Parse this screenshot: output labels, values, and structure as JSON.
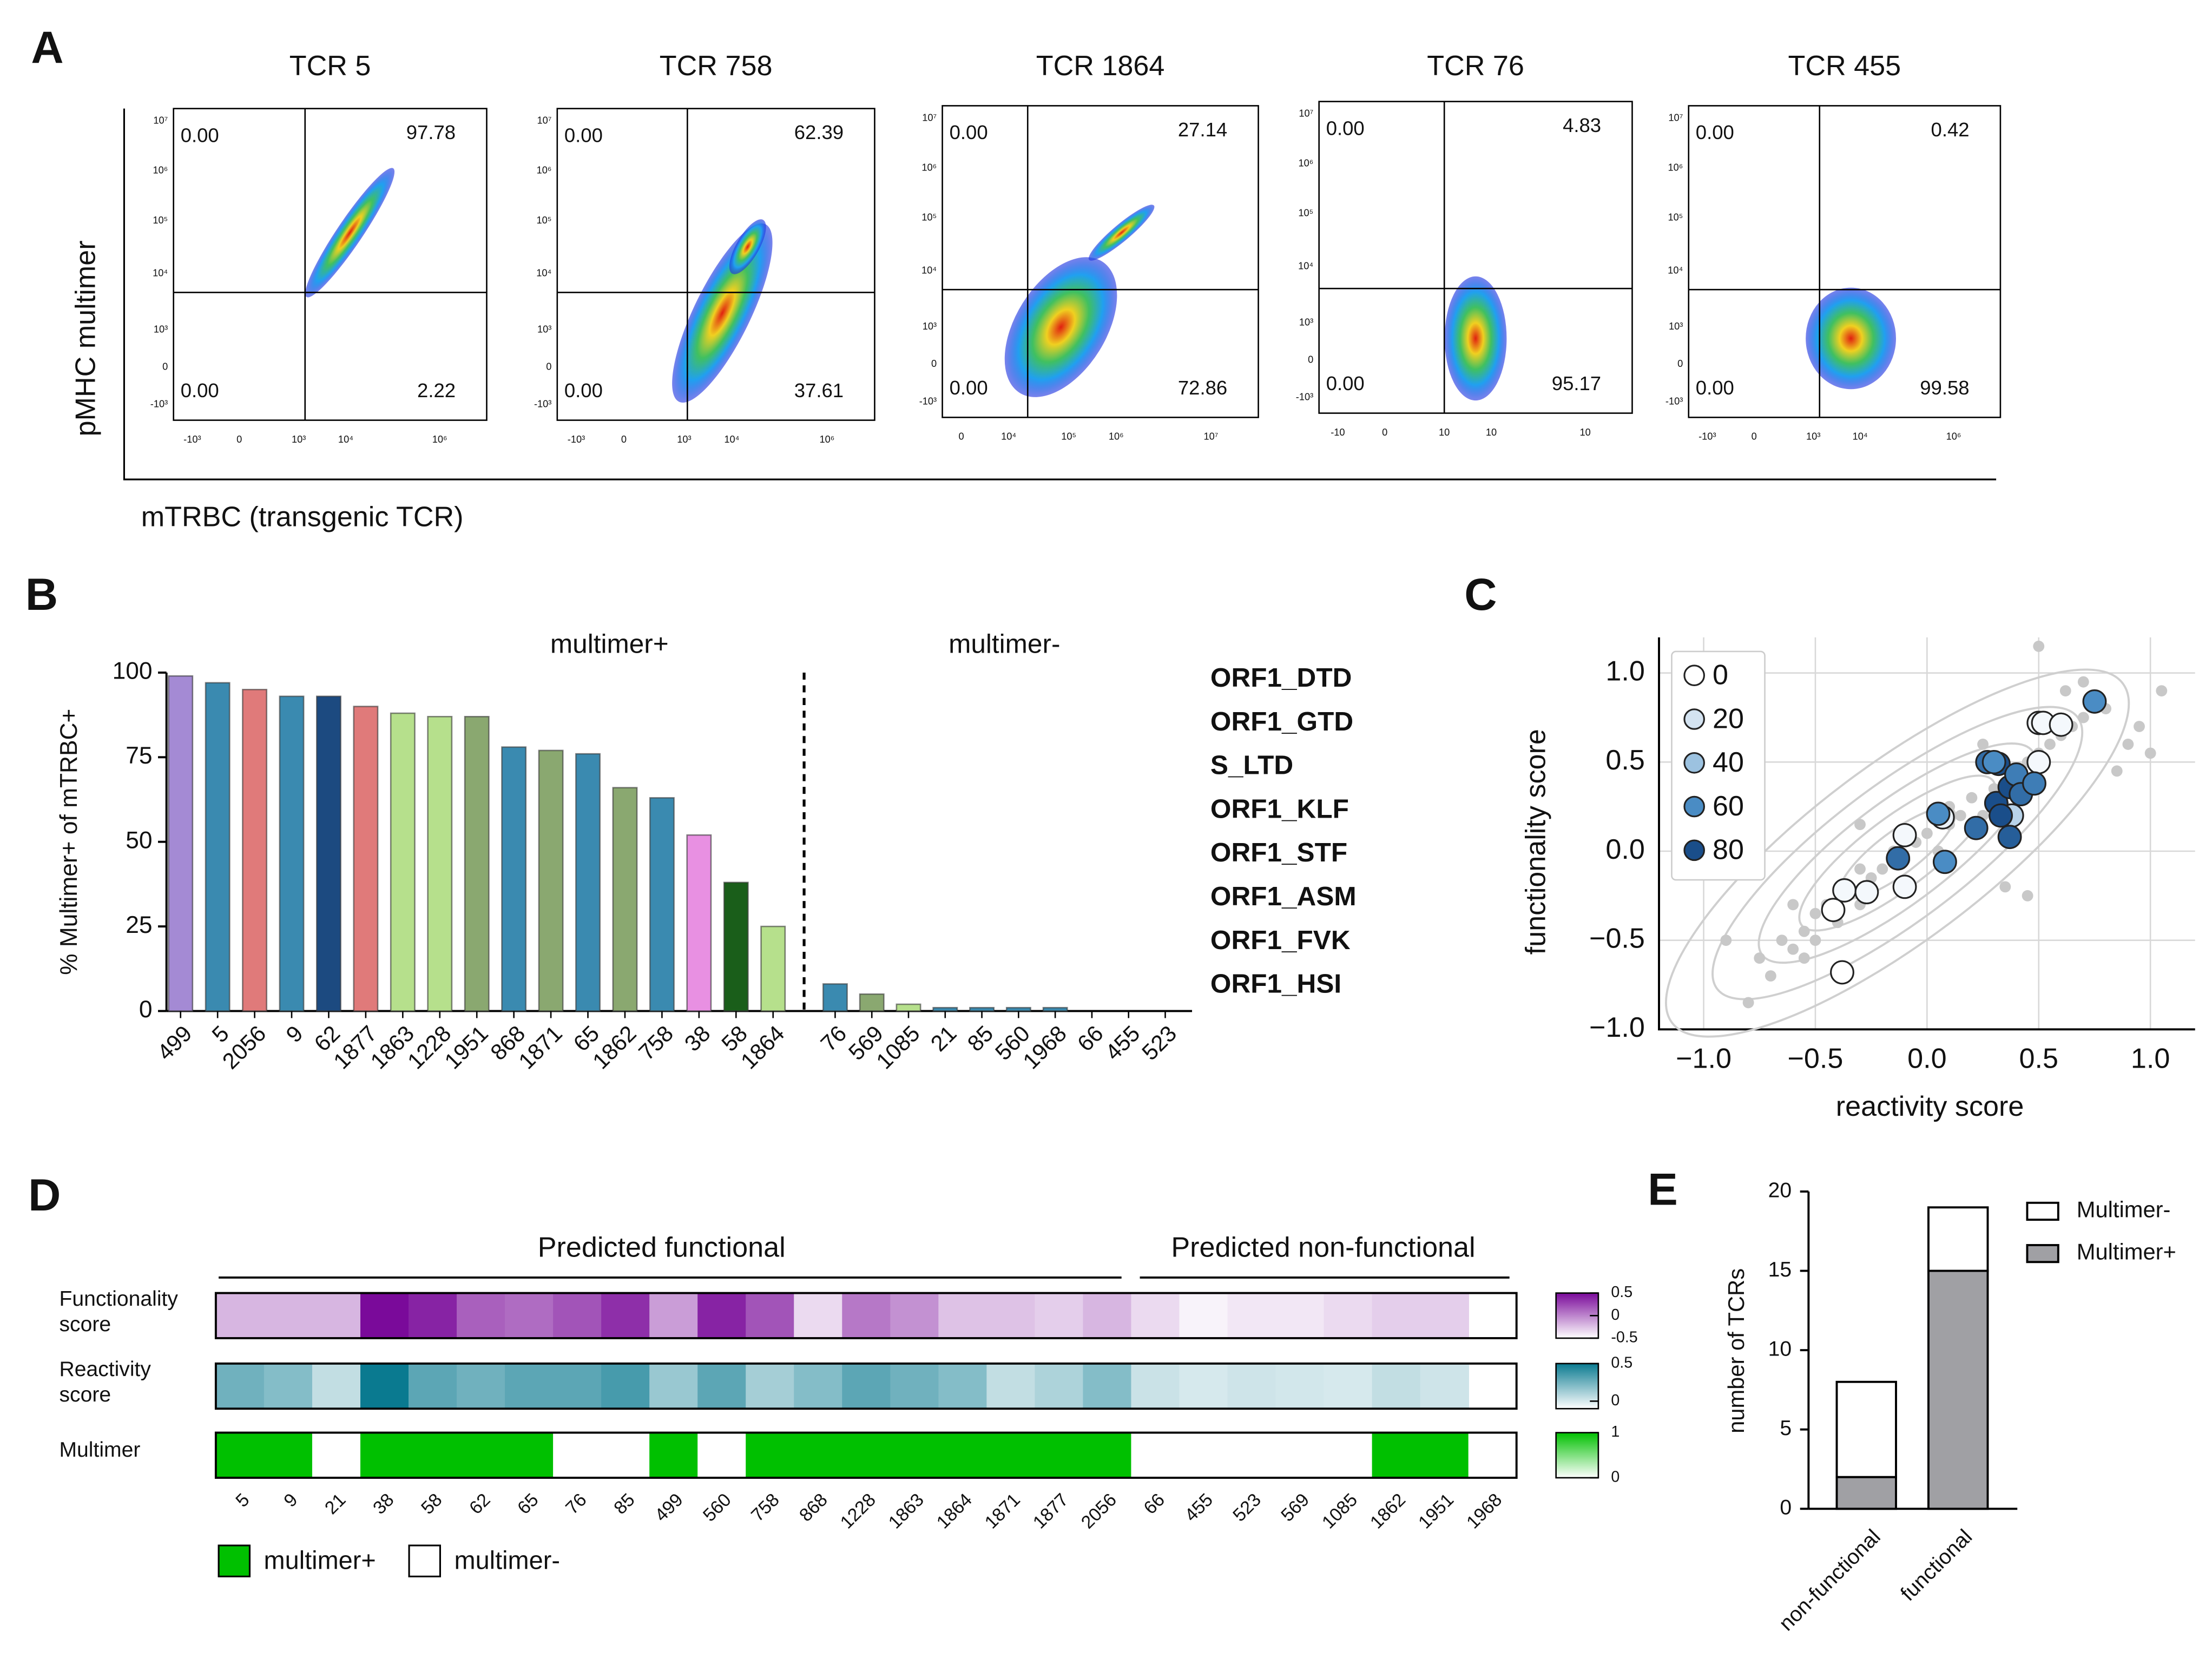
{
  "chart_data": [
    {
      "type": "flow",
      "panel": "A",
      "ylabel": "pMHC multimer",
      "xlabel": "mTRBC (transgenic TCR)",
      "plots": [
        {
          "title": "TCR 5",
          "values": [
            0,
            97.78,
            0,
            2.22
          ],
          "value_labels": [
            "0.00",
            "97.78",
            "0.00",
            "2.22"
          ],
          "ytick_labels": [
            "10⁷",
            "10⁶",
            "10⁵",
            "10⁴",
            "10³",
            "0",
            "-10³"
          ],
          "xtick_labels": [
            "-10³",
            "0",
            "10³",
            "10⁴",
            "10⁶"
          ]
        },
        {
          "title": "TCR 758",
          "values": [
            0,
            62.39,
            0,
            37.61
          ],
          "value_labels": [
            "0.00",
            "62.39",
            "0.00",
            "37.61"
          ],
          "ytick_labels": [
            "10⁷",
            "10⁶",
            "10⁵",
            "10⁴",
            "10³",
            "0",
            "-10³"
          ],
          "xtick_labels": [
            "-10³",
            "0",
            "10³",
            "10⁴",
            "10⁶"
          ]
        },
        {
          "title": "TCR 1864",
          "values": [
            0,
            27.14,
            0,
            72.86
          ],
          "value_labels": [
            "0.00",
            "27.14",
            "0.00",
            "72.86"
          ],
          "ytick_labels": [
            "10⁷",
            "10⁶",
            "10⁵",
            "10⁴",
            "10³",
            "0",
            "-10³"
          ],
          "xtick_labels": [
            "0",
            "10⁴",
            "10⁵",
            "10⁶",
            "10⁷"
          ]
        },
        {
          "title": "TCR 76",
          "values": [
            0,
            4.83,
            0,
            95.17
          ],
          "value_labels": [
            "0.00",
            "4.83",
            "0.00",
            "95.17"
          ],
          "ytick_labels": [
            "10⁷",
            "10⁶",
            "10⁵",
            "10⁴",
            "10³",
            "0",
            "-10³"
          ],
          "xtick_labels": [
            "-10",
            "0",
            "10",
            "10",
            "10"
          ]
        },
        {
          "title": "TCR 455",
          "values": [
            0,
            0.42,
            0,
            99.58
          ],
          "value_labels": [
            "0.00",
            "0.42",
            "0.00",
            "99.58"
          ],
          "ytick_labels": [
            "10⁷",
            "10⁶",
            "10⁵",
            "10⁴",
            "10³",
            "0",
            "-10³"
          ],
          "xtick_labels": [
            "-10³",
            "0",
            "10³",
            "10⁴",
            "10⁶"
          ]
        }
      ]
    },
    {
      "type": "bar",
      "panel": "B",
      "ylabel": "% Multimer+ of mTRBC+",
      "annotations": [
        "multimer+",
        "multimer-"
      ],
      "categories": [
        "499",
        "5",
        "2056",
        "9",
        "62",
        "1877",
        "1863",
        "1228",
        "1951",
        "868",
        "1871",
        "65",
        "1862",
        "758",
        "38",
        "58",
        "1864",
        "76",
        "569",
        "1085",
        "21",
        "85",
        "560",
        "1968",
        "66",
        "455",
        "523"
      ],
      "values": [
        99,
        97,
        95,
        93,
        93,
        90,
        88,
        87,
        87,
        78,
        77,
        76,
        66,
        63,
        52,
        38,
        25,
        8,
        5,
        2,
        1,
        1,
        1,
        1,
        0,
        0,
        0
      ],
      "colors": [
        "#a48ad4",
        "#3a8ab0",
        "#e07a7a",
        "#3a8ab0",
        "#1c4a80",
        "#e07a7a",
        "#b6e08c",
        "#b6e08c",
        "#8aa870",
        "#3a8ab0",
        "#8aa870",
        "#3a8ab0",
        "#8aa870",
        "#3a8ab0",
        "#e890e2",
        "#1a5e1a",
        "#b6e08c",
        "#3a8ab0",
        "#8aa870",
        "#b6e08c",
        "#3a8ab0",
        "#3a8ab0",
        "#3a8ab0",
        "#3a8ab0",
        "#3a8ab0",
        "#3a8ab0",
        "#3a8ab0"
      ],
      "legend": [
        {
          "name": "ORF1_DTD",
          "color": "#3a8ab0"
        },
        {
          "name": "ORF1_GTD",
          "color": "#e890e2"
        },
        {
          "name": "S_LTD",
          "color": "#a8d87c"
        },
        {
          "name": "ORF1_KLF",
          "color": "#1a5e1a"
        },
        {
          "name": "ORF1_STF",
          "color": "#8aa870"
        },
        {
          "name": "ORF1_ASM",
          "color": "#a48ad4"
        },
        {
          "name": "ORF1_FVK",
          "color": "#e07a7a"
        },
        {
          "name": "ORF1_HSI",
          "color": "#1c4a80"
        }
      ],
      "ylim": [
        0,
        100
      ],
      "yticks": [
        0,
        25,
        50,
        75,
        100
      ]
    },
    {
      "type": "scatter",
      "panel": "C",
      "xlabel": "reactivity score",
      "ylabel": "functionality score",
      "grid": true,
      "xlim": [
        -1.2,
        1.2
      ],
      "ylim": [
        -1.0,
        1.2
      ],
      "xticks": [
        {
          "value": -1,
          "label": "−1.0"
        },
        {
          "value": -0.5,
          "label": "−0.5"
        },
        {
          "value": 0,
          "label": "0.0"
        },
        {
          "value": 0.5,
          "label": "0.5"
        },
        {
          "value": 1,
          "label": "1.0"
        }
      ],
      "yticks": [
        {
          "value": -1,
          "label": "−1.0"
        },
        {
          "value": -0.5,
          "label": "−0.5"
        },
        {
          "value": 0,
          "label": "0.0"
        },
        {
          "value": 0.5,
          "label": "0.5"
        },
        {
          "value": 1,
          "label": "1.0"
        }
      ],
      "background": {
        "color": "#c8c8c8",
        "x": [
          -0.8,
          -0.75,
          -0.7,
          -0.65,
          -0.6,
          -0.55,
          -0.5,
          -0.5,
          -0.45,
          -0.4,
          -0.35,
          -0.3,
          -0.3,
          -0.25,
          -0.2,
          -0.15,
          -0.1,
          -0.05,
          0,
          0.05,
          0.1,
          0.15,
          0.2,
          0.25,
          0.3,
          0.35,
          0.4,
          0.45,
          0.5,
          0.55,
          0.6,
          0.65,
          0.7,
          0.8,
          0.9,
          1.0,
          1.05,
          -0.9,
          -0.6,
          0.35,
          0.45,
          0.62,
          0.95,
          -0.3,
          0.1,
          0.5,
          0.85,
          -0.55,
          0.25,
          0.7
        ],
        "y": [
          -0.85,
          -0.6,
          -0.7,
          -0.5,
          -0.55,
          -0.45,
          -0.35,
          -0.5,
          -0.3,
          -0.4,
          -0.2,
          -0.3,
          -0.1,
          -0.15,
          -0.1,
          0.0,
          -0.05,
          0.05,
          0.1,
          0.0,
          0.15,
          0.2,
          0.3,
          0.2,
          0.35,
          0.25,
          0.45,
          0.5,
          0.55,
          0.6,
          0.65,
          0.7,
          0.75,
          0.8,
          0.6,
          0.55,
          0.9,
          -0.5,
          -0.3,
          -0.2,
          -0.25,
          0.9,
          0.7,
          0.15,
          0.25,
          1.15,
          0.45,
          -0.6,
          0.6,
          0.95
        ]
      },
      "points": {
        "x": [
          -0.38,
          -0.42,
          -0.37,
          -0.27,
          -0.1,
          -0.1,
          0.07,
          0.5,
          0.52,
          0.6,
          0.5,
          0.38,
          -0.13,
          0.08,
          0.05,
          0.22,
          0.27,
          0.31,
          0.32,
          0.37,
          0.33,
          0.4,
          0.42,
          0.48,
          0.37,
          0.75,
          0.3
        ],
        "y": [
          -0.68,
          -0.33,
          -0.22,
          -0.23,
          0.09,
          -0.2,
          0.19,
          0.72,
          0.72,
          0.71,
          0.5,
          0.2,
          -0.04,
          -0.06,
          0.21,
          0.13,
          0.5,
          0.27,
          0.49,
          0.36,
          0.2,
          0.43,
          0.32,
          0.38,
          0.08,
          0.84,
          0.5
        ],
        "values": [
          0,
          0,
          5,
          5,
          5,
          5,
          10,
          5,
          5,
          5,
          5,
          30,
          70,
          60,
          60,
          70,
          70,
          90,
          80,
          80,
          80,
          65,
          70,
          65,
          75,
          60,
          60
        ]
      },
      "legend": [
        {
          "value": 0,
          "color": "#ffffff"
        },
        {
          "value": 20,
          "color": "#d4e3f1"
        },
        {
          "value": 40,
          "color": "#9cc2e0"
        },
        {
          "value": 60,
          "color": "#4a8cc4"
        },
        {
          "value": 80,
          "color": "#1a4e8a"
        }
      ]
    },
    {
      "type": "heatmap",
      "panel": "D",
      "groups": [
        "Predicted functional",
        "Predicted non-functional"
      ],
      "categories": [
        "5",
        "9",
        "21",
        "38",
        "58",
        "62",
        "65",
        "76",
        "85",
        "499",
        "560",
        "758",
        "868",
        "1228",
        "1863",
        "1864",
        "1871",
        "1877",
        "2056",
        "66",
        "455",
        "523",
        "569",
        "1085",
        "1862",
        "1951",
        "1968"
      ],
      "rows": [
        {
          "label": [
            "Functionality",
            "score"
          ],
          "clim": [
            -0.5,
            0.5
          ],
          "cticks": [
            0.5,
            0,
            -0.5
          ],
          "colors": [
            "#ffffff",
            "#7a0a9a"
          ],
          "values": [
            -0.2,
            -0.2,
            -0.2,
            0.5,
            0.4,
            0.15,
            0.1,
            0.2,
            0.35,
            -0.1,
            0.4,
            0.2,
            -0.35,
            0.05,
            -0.05,
            -0.25,
            -0.25,
            -0.3,
            -0.2,
            -0.35,
            -0.45,
            -0.4,
            -0.4,
            -0.35,
            -0.3,
            -0.3,
            null
          ]
        },
        {
          "label": [
            "Reactivity",
            "score"
          ],
          "clim": [
            -0.1,
            0.5
          ],
          "cticks": [
            0.5,
            0
          ],
          "colors": [
            "#ffffff",
            "#0a7a90"
          ],
          "values": [
            0.25,
            0.2,
            0.05,
            0.5,
            0.3,
            0.25,
            0.3,
            0.3,
            0.35,
            0.15,
            0.3,
            0.12,
            0.2,
            0.3,
            0.25,
            0.2,
            0.05,
            0.1,
            0.2,
            0.03,
            0,
            0.02,
            0.01,
            0,
            0.05,
            0.02,
            null
          ]
        },
        {
          "label": [
            "Multimer"
          ],
          "clim": [
            0,
            1
          ],
          "cticks": [
            1,
            0
          ],
          "colors": [
            "#ffffff",
            "#00c000"
          ],
          "values": [
            1,
            1,
            0,
            1,
            1,
            1,
            1,
            0,
            0,
            1,
            0,
            1,
            1,
            1,
            1,
            1,
            1,
            1,
            1,
            0,
            0,
            0,
            0,
            0,
            1,
            1,
            0
          ]
        }
      ],
      "legend": [
        {
          "name": "multimer+",
          "color": "#00c000"
        },
        {
          "name": "multimer-",
          "color": "#ffffff"
        }
      ]
    },
    {
      "type": "stacked_bar",
      "panel": "E",
      "ylabel": "number of TCRs",
      "categories": [
        "non-functional",
        "functional"
      ],
      "series": [
        {
          "name": "Multimer+",
          "color": "#a0a0a4",
          "values": [
            2,
            15
          ]
        },
        {
          "name": "Multimer-",
          "color": "#ffffff",
          "values": [
            6,
            4
          ]
        }
      ],
      "ylim": [
        0,
        20
      ],
      "yticks": [
        0,
        5,
        10,
        15,
        20
      ]
    }
  ]
}
